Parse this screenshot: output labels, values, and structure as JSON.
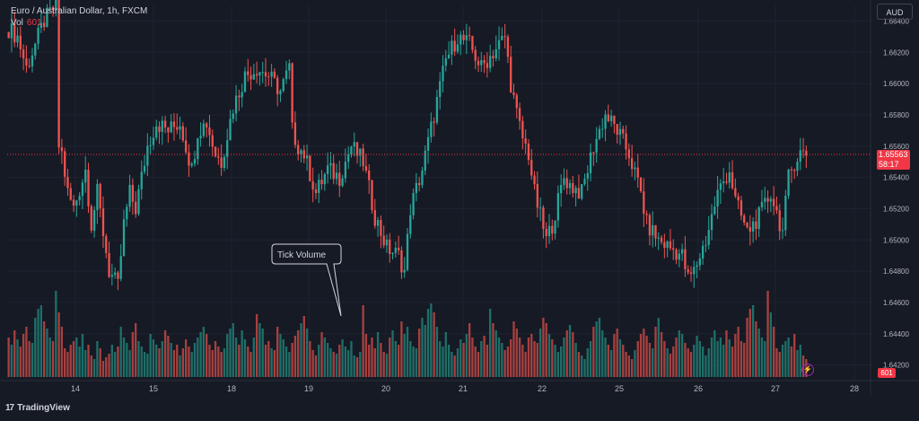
{
  "legend": {
    "symbol": "Euro / Australian Dollar, 1h, FXCM",
    "vol_label": "Vol",
    "vol_value": "601"
  },
  "currency_button": "AUD",
  "price_tag": {
    "price": "1.65563",
    "countdown": "58:17"
  },
  "volume_tag": "601",
  "callout": "Tick Volume",
  "footer": {
    "logo": "17",
    "brand": "TradingView"
  },
  "colors": {
    "up": "#26a69a",
    "down": "#ef5350",
    "up_vol": "#1e6f68",
    "down_vol": "#a8403f",
    "bg": "#161a25",
    "grid": "#1f2330",
    "price_line": "#f23645"
  },
  "chart_data": {
    "type": "candlestick",
    "title": "Euro / Australian Dollar, 1h, FXCM",
    "y_ticks": [
      1.664,
      1.662,
      1.66,
      1.658,
      1.656,
      1.654,
      1.652,
      1.65,
      1.648,
      1.646,
      1.644,
      1.642
    ],
    "y_tick_labels": [
      "1.66400",
      "1.66200",
      "1.66000",
      "1.65800",
      "1.65600",
      "1.65400",
      "1.65200",
      "1.65000",
      "1.64800",
      "1.64600",
      "1.64400",
      "1.64200"
    ],
    "x_ticks": [
      "14",
      "15",
      "18",
      "19",
      "20",
      "21",
      "22",
      "25",
      "26",
      "27",
      "28"
    ],
    "x_tick_positions": [
      84,
      171,
      258,
      344,
      430,
      516,
      604,
      690,
      778,
      864,
      952
    ],
    "last_price": 1.65563,
    "current_volume": 601,
    "anchor_prices": [
      [
        0,
        1.6635
      ],
      [
        3,
        1.663
      ],
      [
        6,
        1.661
      ],
      [
        9,
        1.6625
      ],
      [
        12,
        1.664
      ],
      [
        14,
        1.6645
      ],
      [
        16,
        1.665
      ],
      [
        17,
        1.656
      ],
      [
        18,
        1.6555
      ],
      [
        20,
        1.653
      ],
      [
        22,
        1.652
      ],
      [
        26,
        1.6545
      ],
      [
        28,
        1.651
      ],
      [
        30,
        1.653
      ],
      [
        34,
        1.648
      ],
      [
        37,
        1.647
      ],
      [
        39,
        1.651
      ],
      [
        41,
        1.653
      ],
      [
        43,
        1.652
      ],
      [
        47,
        1.656
      ],
      [
        50,
        1.6575
      ],
      [
        54,
        1.657
      ],
      [
        58,
        1.6575
      ],
      [
        62,
        1.6545
      ],
      [
        64,
        1.657
      ],
      [
        67,
        1.6575
      ],
      [
        70,
        1.6555
      ],
      [
        72,
        1.655
      ],
      [
        76,
        1.6585
      ],
      [
        80,
        1.6605
      ],
      [
        84,
        1.661
      ],
      [
        88,
        1.6605
      ],
      [
        92,
        1.6595
      ],
      [
        95,
        1.661
      ],
      [
        96,
        1.657
      ],
      [
        98,
        1.656
      ],
      [
        100,
        1.6555
      ],
      [
        104,
        1.653
      ],
      [
        108,
        1.6545
      ],
      [
        112,
        1.654
      ],
      [
        116,
        1.656
      ],
      [
        120,
        1.655
      ],
      [
        124,
        1.6515
      ],
      [
        128,
        1.6495
      ],
      [
        132,
        1.649
      ],
      [
        134,
        1.648
      ],
      [
        136,
        1.652
      ],
      [
        140,
        1.6545
      ],
      [
        144,
        1.658
      ],
      [
        148,
        1.6615
      ],
      [
        152,
        1.663
      ],
      [
        156,
        1.6625
      ],
      [
        160,
        1.661
      ],
      [
        164,
        1.662
      ],
      [
        168,
        1.663
      ],
      [
        170,
        1.66
      ],
      [
        172,
        1.658
      ],
      [
        174,
        1.6565
      ],
      [
        176,
        1.6555
      ],
      [
        178,
        1.653
      ],
      [
        182,
        1.65
      ],
      [
        184,
        1.651
      ],
      [
        188,
        1.654
      ],
      [
        190,
        1.6535
      ],
      [
        194,
        1.653
      ],
      [
        198,
        1.656
      ],
      [
        202,
        1.658
      ],
      [
        206,
        1.657
      ],
      [
        210,
        1.6555
      ],
      [
        214,
        1.653
      ],
      [
        216,
        1.651
      ],
      [
        220,
        1.65
      ],
      [
        224,
        1.6495
      ],
      [
        228,
        1.649
      ],
      [
        230,
        1.6475
      ],
      [
        232,
        1.648
      ],
      [
        236,
        1.65
      ],
      [
        240,
        1.653
      ],
      [
        244,
        1.6545
      ],
      [
        246,
        1.6525
      ],
      [
        250,
        1.6505
      ],
      [
        254,
        1.6515
      ],
      [
        258,
        1.653
      ],
      [
        262,
        1.6505
      ],
      [
        264,
        1.654
      ],
      [
        266,
        1.655
      ],
      [
        268,
        1.6556
      ],
      [
        270,
        1.6555
      ]
    ],
    "volumes": [
      22,
      18,
      26,
      21,
      17,
      24,
      28,
      20,
      19,
      33,
      38,
      40,
      31,
      27,
      22,
      20,
      48,
      36,
      28,
      16,
      14,
      18,
      20,
      22,
      17,
      24,
      15,
      18,
      12,
      10,
      20,
      16,
      9,
      11,
      13,
      18,
      14,
      17,
      28,
      22,
      19,
      15,
      25,
      30,
      20,
      17,
      14,
      13,
      24,
      21,
      18,
      16,
      20,
      26,
      23,
      19,
      15,
      18,
      12,
      16,
      21,
      17,
      14,
      19,
      22,
      25,
      28,
      24,
      18,
      15,
      20,
      17,
      14,
      16,
      24,
      27,
      30,
      22,
      18,
      26,
      21,
      17,
      14,
      22,
      35,
      30,
      27,
      18,
      20,
      16,
      15,
      28,
      24,
      21,
      17,
      14,
      19,
      23,
      26,
      30,
      34,
      27,
      20,
      15,
      12,
      18,
      25,
      22,
      19,
      16,
      14,
      13,
      18,
      21,
      17,
      15,
      20,
      12,
      11,
      14,
      40,
      24,
      18,
      22,
      16,
      25,
      19,
      14,
      13,
      22,
      26,
      20,
      18,
      31,
      24,
      28,
      20,
      17,
      16,
      27,
      33,
      29,
      38,
      41,
      36,
      28,
      20,
      17,
      25,
      18,
      14,
      12,
      16,
      21,
      19,
      24,
      30,
      22,
      17,
      14,
      20,
      23,
      18,
      38,
      30,
      26,
      22,
      19,
      15,
      17,
      21,
      31,
      27,
      22,
      18,
      14,
      22,
      24,
      20,
      19,
      27,
      33,
      30,
      24,
      21,
      18,
      14,
      17,
      22,
      26,
      29,
      25,
      19,
      14,
      12,
      10,
      16,
      20,
      28,
      31,
      33,
      26,
      22,
      18,
      15,
      24,
      27,
      21,
      18,
      14,
      12,
      10,
      15,
      20,
      24,
      27,
      23,
      19,
      16,
      28,
      33,
      25,
      20,
      16,
      13,
      17,
      22,
      26,
      24,
      19,
      16,
      14,
      18,
      23,
      20,
      17,
      12,
      16,
      22,
      26,
      20
    ]
  }
}
